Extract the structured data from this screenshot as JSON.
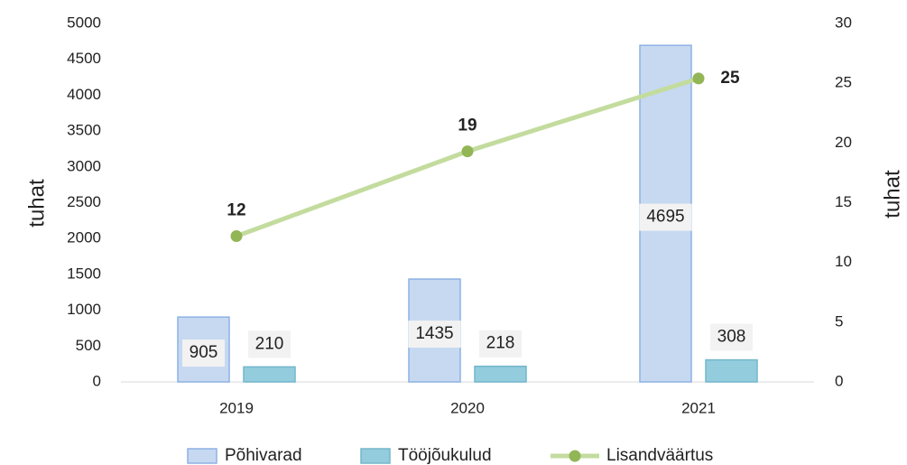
{
  "chart_data": {
    "type": "bar_line",
    "categories": [
      "2019",
      "2020",
      "2021"
    ],
    "series": [
      {
        "name": "Põhivarad",
        "type": "bar",
        "color": "#c6d9f1",
        "stroke": "#8eb1e4",
        "values": [
          905,
          1435,
          4695
        ],
        "label_position": "center"
      },
      {
        "name": "Tööjõukulud",
        "type": "bar",
        "color": "#93cddd",
        "stroke": "#74b6cc",
        "values": [
          210,
          218,
          308
        ],
        "label_position": "above"
      },
      {
        "name": "Lisandväärtus",
        "type": "line",
        "axis": "y2",
        "color": "#c3dc9e",
        "marker_color": "#92b556",
        "values": [
          12.2,
          19.3,
          25.4
        ],
        "value_labels": [
          "12",
          "19",
          "25"
        ]
      }
    ],
    "ylabel": "tuhat",
    "y2label": "tuhat",
    "ylim": [
      0,
      5000
    ],
    "yticks": [
      0,
      500,
      1000,
      1500,
      2000,
      2500,
      3000,
      3500,
      4000,
      4500,
      5000
    ],
    "y2lim": [
      0,
      30
    ],
    "y2ticks": [
      0,
      5,
      10,
      15,
      20,
      25,
      30
    ],
    "legend": "bottom",
    "grid": false
  }
}
